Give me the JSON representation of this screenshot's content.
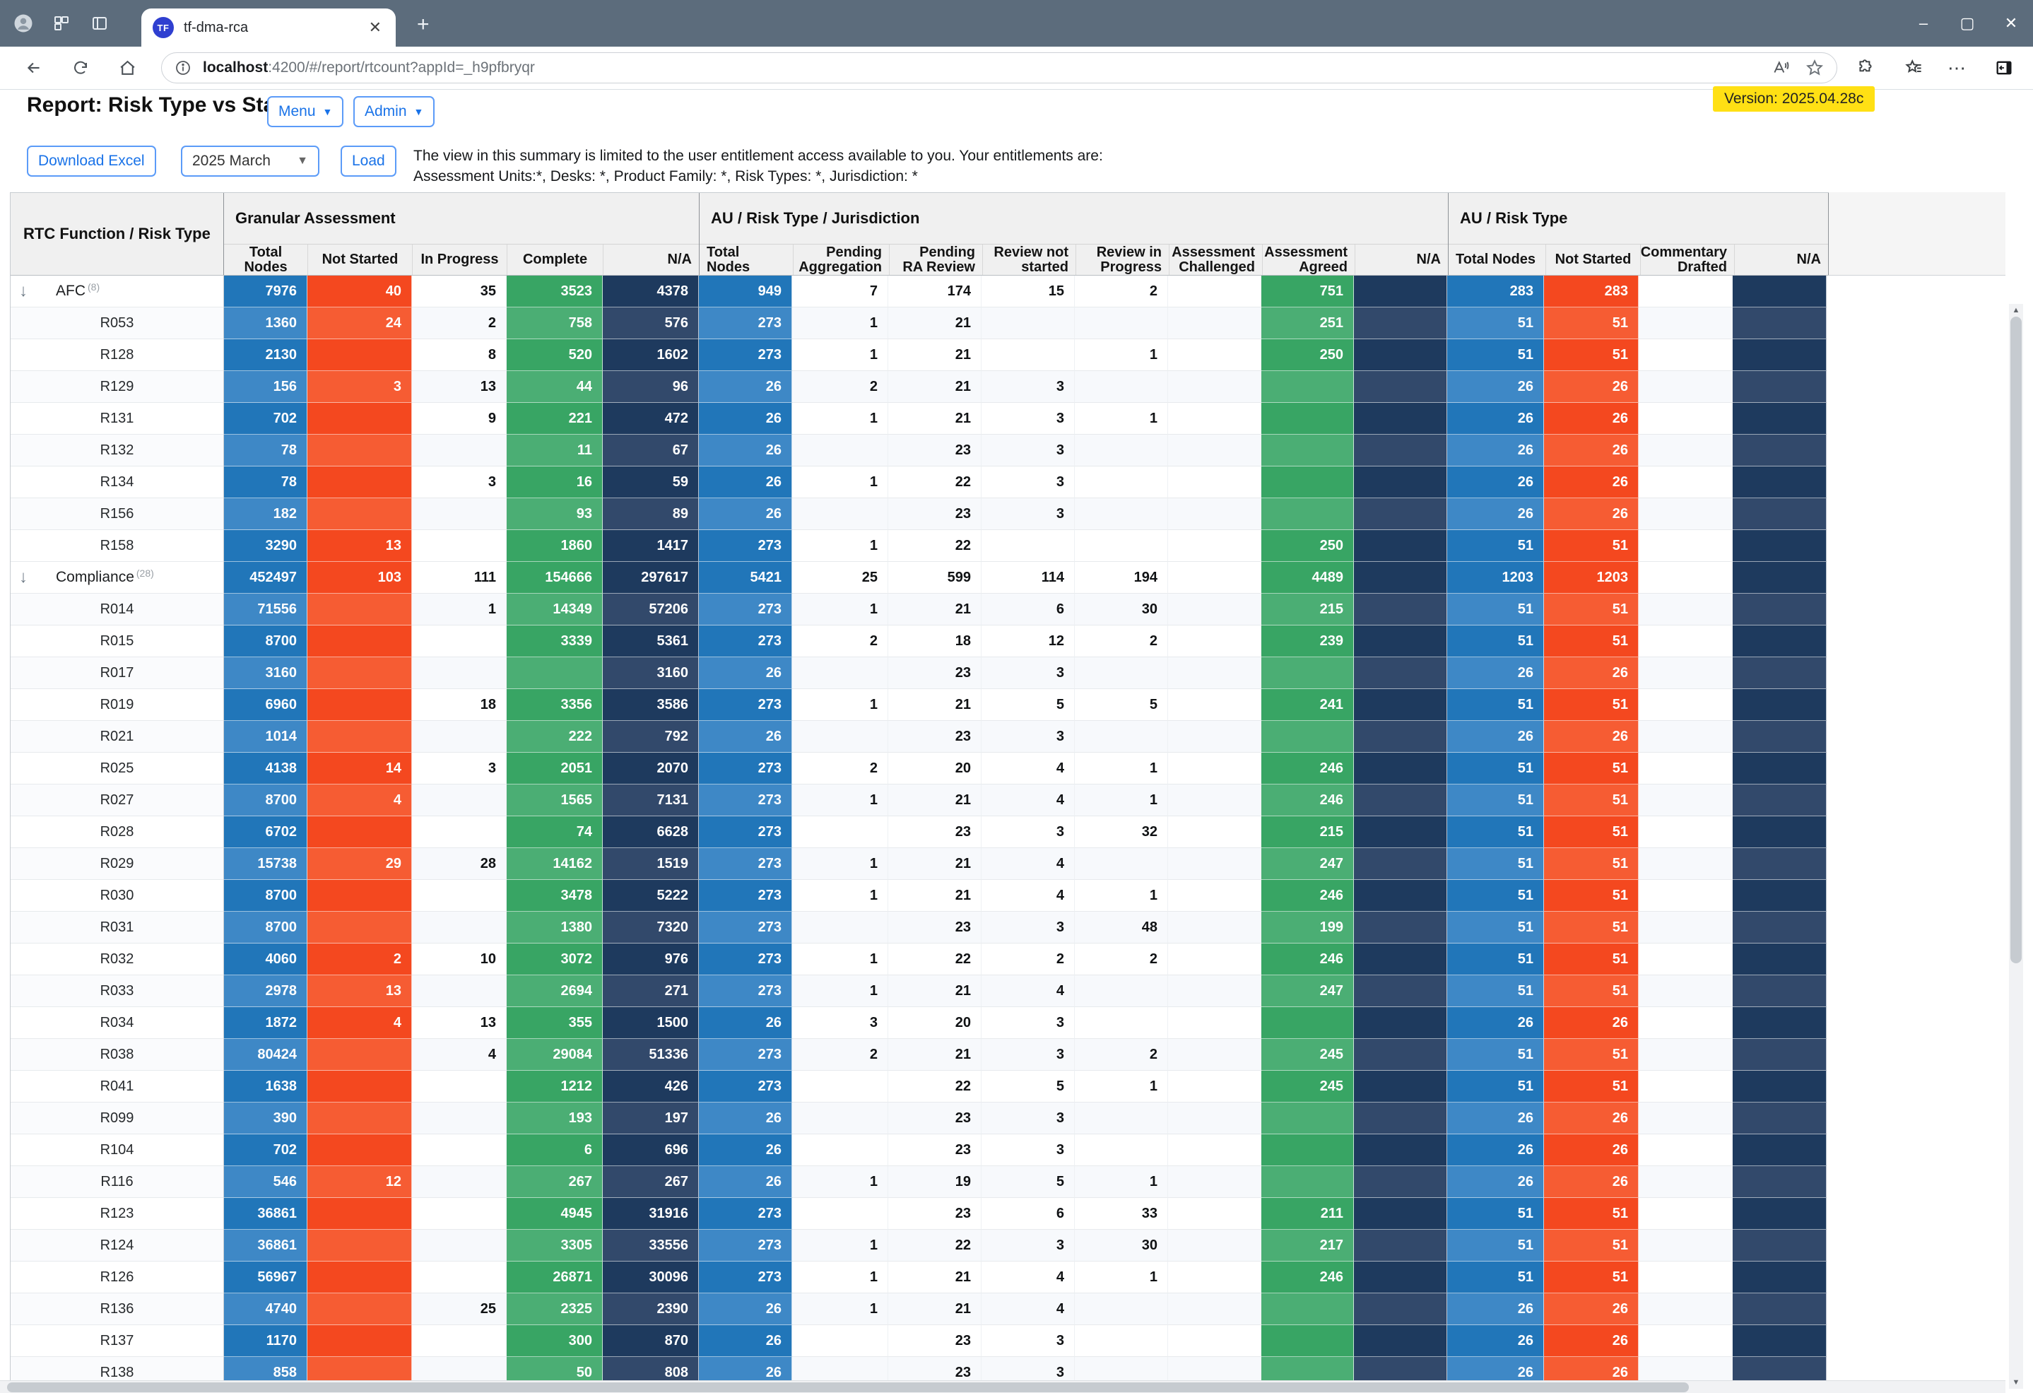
{
  "browser": {
    "tab_title": "tf-dma-rca",
    "favicon_text": "TF",
    "url_host": "localhost",
    "url_rest": ":4200/#/report/rtcount?appId=_h9pfbryqr",
    "window_controls": {
      "minimize": "–",
      "maximize": "▢",
      "close": "✕"
    },
    "new_tab": "+",
    "tab_close": "✕"
  },
  "header": {
    "title": "Report: Risk Type vs Status",
    "menu_label": "Menu",
    "admin_label": "Admin",
    "version": "Version: 2025.04.28c"
  },
  "controls": {
    "download_label": "Download Excel",
    "period_value": "2025 March",
    "load_label": "Load",
    "entitlement_line1": "The view in this summary is limited to the user entitlement access available to you. Your entitlements are:",
    "entitlement_line2": "Assessment Units:*,  Desks: *,  Product Family: *,  Risk Types: *,  Jurisdiction: *"
  },
  "colors": {
    "tabbar": "#5c6c7c",
    "versionbg": "#ffe014",
    "blue": "#2176b9",
    "blueA": "#3e88c6",
    "red": "#f4481f",
    "redA": "#f65c33",
    "green": "#38a564",
    "greenA": "#4bae74",
    "navy": "#1e3a5e",
    "navyA": "#32496b"
  },
  "table": {
    "corner_header": "RTC Function / Risk Type",
    "groups": [
      {
        "label": "Granular Assessment",
        "columns": [
          "Total Nodes",
          "Not Started",
          "In Progress",
          "Complete",
          "N/A"
        ]
      },
      {
        "label": "AU / Risk Type / Jurisdiction",
        "columns": [
          "Total Nodes",
          "Pending Aggregation",
          "Pending RA Review",
          "Review not started",
          "Review in Progress",
          "Assessment Challenged",
          "Assessment Agreed",
          "N/A"
        ]
      },
      {
        "label": "AU / Risk Type",
        "columns": [
          "Total Nodes",
          "Not Started",
          "Commentary Drafted",
          "N/A"
        ]
      }
    ],
    "rows": [
      {
        "label": "AFC",
        "count": "(8)",
        "group": true,
        "ga": [
          "7976",
          "40",
          "35",
          "3523",
          "4378"
        ],
        "auj": [
          "949",
          "7",
          "174",
          "15",
          "2",
          "",
          "751",
          ""
        ],
        "aurt": [
          "283",
          "283",
          "",
          ""
        ]
      },
      {
        "label": "R053",
        "ga": [
          "1360",
          "24",
          "2",
          "758",
          "576"
        ],
        "auj": [
          "273",
          "1",
          "21",
          "",
          "",
          "",
          "251",
          ""
        ],
        "aurt": [
          "51",
          "51",
          "",
          ""
        ]
      },
      {
        "label": "R128",
        "ga": [
          "2130",
          "",
          "8",
          "520",
          "1602"
        ],
        "auj": [
          "273",
          "1",
          "21",
          "",
          "1",
          "",
          "250",
          ""
        ],
        "aurt": [
          "51",
          "51",
          "",
          ""
        ]
      },
      {
        "label": "R129",
        "ga": [
          "156",
          "3",
          "13",
          "44",
          "96"
        ],
        "auj": [
          "26",
          "2",
          "21",
          "3",
          "",
          "",
          "",
          ""
        ],
        "aurt": [
          "26",
          "26",
          "",
          ""
        ]
      },
      {
        "label": "R131",
        "ga": [
          "702",
          "",
          "9",
          "221",
          "472"
        ],
        "auj": [
          "26",
          "1",
          "21",
          "3",
          "1",
          "",
          "",
          ""
        ],
        "aurt": [
          "26",
          "26",
          "",
          ""
        ]
      },
      {
        "label": "R132",
        "ga": [
          "78",
          "",
          "",
          "11",
          "67"
        ],
        "auj": [
          "26",
          "",
          "23",
          "3",
          "",
          "",
          "",
          ""
        ],
        "aurt": [
          "26",
          "26",
          "",
          ""
        ]
      },
      {
        "label": "R134",
        "ga": [
          "78",
          "",
          "3",
          "16",
          "59"
        ],
        "auj": [
          "26",
          "1",
          "22",
          "3",
          "",
          "",
          "",
          ""
        ],
        "aurt": [
          "26",
          "26",
          "",
          ""
        ]
      },
      {
        "label": "R156",
        "ga": [
          "182",
          "",
          "",
          "93",
          "89"
        ],
        "auj": [
          "26",
          "",
          "23",
          "3",
          "",
          "",
          "",
          ""
        ],
        "aurt": [
          "26",
          "26",
          "",
          ""
        ]
      },
      {
        "label": "R158",
        "ga": [
          "3290",
          "13",
          "",
          "1860",
          "1417"
        ],
        "auj": [
          "273",
          "1",
          "22",
          "",
          "",
          "",
          "250",
          ""
        ],
        "aurt": [
          "51",
          "51",
          "",
          ""
        ]
      },
      {
        "label": "Compliance",
        "count": "(28)",
        "group": true,
        "ga": [
          "452497",
          "103",
          "111",
          "154666",
          "297617"
        ],
        "auj": [
          "5421",
          "25",
          "599",
          "114",
          "194",
          "",
          "4489",
          ""
        ],
        "aurt": [
          "1203",
          "1203",
          "",
          ""
        ]
      },
      {
        "label": "R014",
        "ga": [
          "71556",
          "",
          "1",
          "14349",
          "57206"
        ],
        "auj": [
          "273",
          "1",
          "21",
          "6",
          "30",
          "",
          "215",
          ""
        ],
        "aurt": [
          "51",
          "51",
          "",
          ""
        ]
      },
      {
        "label": "R015",
        "ga": [
          "8700",
          "",
          "",
          "3339",
          "5361"
        ],
        "auj": [
          "273",
          "2",
          "18",
          "12",
          "2",
          "",
          "239",
          ""
        ],
        "aurt": [
          "51",
          "51",
          "",
          ""
        ]
      },
      {
        "label": "R017",
        "ga": [
          "3160",
          "",
          "",
          "",
          "3160"
        ],
        "auj": [
          "26",
          "",
          "23",
          "3",
          "",
          "",
          "",
          ""
        ],
        "aurt": [
          "26",
          "26",
          "",
          ""
        ]
      },
      {
        "label": "R019",
        "ga": [
          "6960",
          "",
          "18",
          "3356",
          "3586"
        ],
        "auj": [
          "273",
          "1",
          "21",
          "5",
          "5",
          "",
          "241",
          ""
        ],
        "aurt": [
          "51",
          "51",
          "",
          ""
        ]
      },
      {
        "label": "R021",
        "ga": [
          "1014",
          "",
          "",
          "222",
          "792"
        ],
        "auj": [
          "26",
          "",
          "23",
          "3",
          "",
          "",
          "",
          ""
        ],
        "aurt": [
          "26",
          "26",
          "",
          ""
        ]
      },
      {
        "label": "R025",
        "ga": [
          "4138",
          "14",
          "3",
          "2051",
          "2070"
        ],
        "auj": [
          "273",
          "2",
          "20",
          "4",
          "1",
          "",
          "246",
          ""
        ],
        "aurt": [
          "51",
          "51",
          "",
          ""
        ]
      },
      {
        "label": "R027",
        "ga": [
          "8700",
          "4",
          "",
          "1565",
          "7131"
        ],
        "auj": [
          "273",
          "1",
          "21",
          "4",
          "1",
          "",
          "246",
          ""
        ],
        "aurt": [
          "51",
          "51",
          "",
          ""
        ]
      },
      {
        "label": "R028",
        "ga": [
          "6702",
          "",
          "",
          "74",
          "6628"
        ],
        "auj": [
          "273",
          "",
          "23",
          "3",
          "32",
          "",
          "215",
          ""
        ],
        "aurt": [
          "51",
          "51",
          "",
          ""
        ]
      },
      {
        "label": "R029",
        "ga": [
          "15738",
          "29",
          "28",
          "14162",
          "1519"
        ],
        "auj": [
          "273",
          "1",
          "21",
          "4",
          "",
          "",
          "247",
          ""
        ],
        "aurt": [
          "51",
          "51",
          "",
          ""
        ]
      },
      {
        "label": "R030",
        "ga": [
          "8700",
          "",
          "",
          "3478",
          "5222"
        ],
        "auj": [
          "273",
          "1",
          "21",
          "4",
          "1",
          "",
          "246",
          ""
        ],
        "aurt": [
          "51",
          "51",
          "",
          ""
        ]
      },
      {
        "label": "R031",
        "ga": [
          "8700",
          "",
          "",
          "1380",
          "7320"
        ],
        "auj": [
          "273",
          "",
          "23",
          "3",
          "48",
          "",
          "199",
          ""
        ],
        "aurt": [
          "51",
          "51",
          "",
          ""
        ]
      },
      {
        "label": "R032",
        "ga": [
          "4060",
          "2",
          "10",
          "3072",
          "976"
        ],
        "auj": [
          "273",
          "1",
          "22",
          "2",
          "2",
          "",
          "246",
          ""
        ],
        "aurt": [
          "51",
          "51",
          "",
          ""
        ]
      },
      {
        "label": "R033",
        "ga": [
          "2978",
          "13",
          "",
          "2694",
          "271"
        ],
        "auj": [
          "273",
          "1",
          "21",
          "4",
          "",
          "",
          "247",
          ""
        ],
        "aurt": [
          "51",
          "51",
          "",
          ""
        ]
      },
      {
        "label": "R034",
        "ga": [
          "1872",
          "4",
          "13",
          "355",
          "1500"
        ],
        "auj": [
          "26",
          "3",
          "20",
          "3",
          "",
          "",
          "",
          ""
        ],
        "aurt": [
          "26",
          "26",
          "",
          ""
        ]
      },
      {
        "label": "R038",
        "ga": [
          "80424",
          "",
          "4",
          "29084",
          "51336"
        ],
        "auj": [
          "273",
          "2",
          "21",
          "3",
          "2",
          "",
          "245",
          ""
        ],
        "aurt": [
          "51",
          "51",
          "",
          ""
        ]
      },
      {
        "label": "R041",
        "ga": [
          "1638",
          "",
          "",
          "1212",
          "426"
        ],
        "auj": [
          "273",
          "",
          "22",
          "5",
          "1",
          "",
          "245",
          ""
        ],
        "aurt": [
          "51",
          "51",
          "",
          ""
        ]
      },
      {
        "label": "R099",
        "ga": [
          "390",
          "",
          "",
          "193",
          "197"
        ],
        "auj": [
          "26",
          "",
          "23",
          "3",
          "",
          "",
          "",
          ""
        ],
        "aurt": [
          "26",
          "26",
          "",
          ""
        ]
      },
      {
        "label": "R104",
        "ga": [
          "702",
          "",
          "",
          "6",
          "696"
        ],
        "auj": [
          "26",
          "",
          "23",
          "3",
          "",
          "",
          "",
          ""
        ],
        "aurt": [
          "26",
          "26",
          "",
          ""
        ]
      },
      {
        "label": "R116",
        "ga": [
          "546",
          "12",
          "",
          "267",
          "267"
        ],
        "auj": [
          "26",
          "1",
          "19",
          "5",
          "1",
          "",
          "",
          ""
        ],
        "aurt": [
          "26",
          "26",
          "",
          ""
        ]
      },
      {
        "label": "R123",
        "ga": [
          "36861",
          "",
          "",
          "4945",
          "31916"
        ],
        "auj": [
          "273",
          "",
          "23",
          "6",
          "33",
          "",
          "211",
          ""
        ],
        "aurt": [
          "51",
          "51",
          "",
          ""
        ]
      },
      {
        "label": "R124",
        "ga": [
          "36861",
          "",
          "",
          "3305",
          "33556"
        ],
        "auj": [
          "273",
          "1",
          "22",
          "3",
          "30",
          "",
          "217",
          ""
        ],
        "aurt": [
          "51",
          "51",
          "",
          ""
        ]
      },
      {
        "label": "R126",
        "ga": [
          "56967",
          "",
          "",
          "26871",
          "30096"
        ],
        "auj": [
          "273",
          "1",
          "21",
          "4",
          "1",
          "",
          "246",
          ""
        ],
        "aurt": [
          "51",
          "51",
          "",
          ""
        ]
      },
      {
        "label": "R136",
        "ga": [
          "4740",
          "",
          "25",
          "2325",
          "2390"
        ],
        "auj": [
          "26",
          "1",
          "21",
          "4",
          "",
          "",
          "",
          ""
        ],
        "aurt": [
          "26",
          "26",
          "",
          ""
        ]
      },
      {
        "label": "R137",
        "ga": [
          "1170",
          "",
          "",
          "300",
          "870"
        ],
        "auj": [
          "26",
          "",
          "23",
          "3",
          "",
          "",
          "",
          ""
        ],
        "aurt": [
          "26",
          "26",
          "",
          ""
        ]
      },
      {
        "label": "R138",
        "ga": [
          "858",
          "",
          "",
          "50",
          "808"
        ],
        "auj": [
          "26",
          "",
          "23",
          "3",
          "",
          "",
          "",
          ""
        ],
        "aurt": [
          "26",
          "26",
          "",
          ""
        ]
      }
    ]
  }
}
